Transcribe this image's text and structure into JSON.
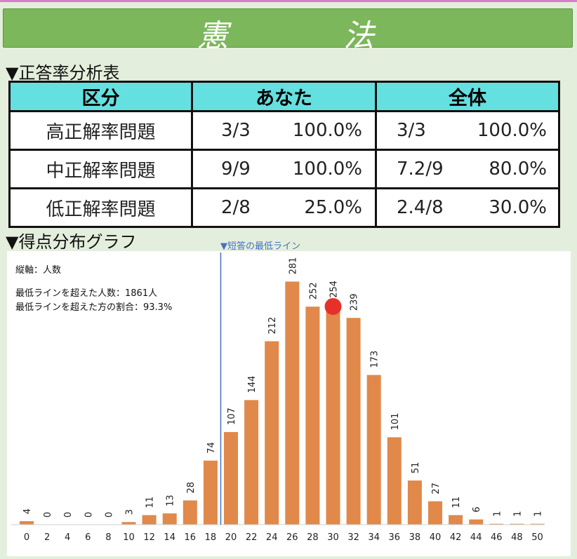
{
  "header": {
    "title_char_1": "憲",
    "title_char_2": "法"
  },
  "analysis": {
    "heading": "▼正答率分析表",
    "columns": [
      "区分",
      "あなた",
      "全体"
    ],
    "rows": [
      {
        "label": "高正解率問題",
        "you_count": "3/3",
        "you_pct": "100.0%",
        "all_count": "3/3",
        "all_pct": "100.0%"
      },
      {
        "label": "中正解率問題",
        "you_count": "9/9",
        "you_pct": "100.0%",
        "all_count": "7.2/9",
        "all_pct": "80.0%"
      },
      {
        "label": "低正解率問題",
        "you_count": "2/8",
        "you_pct": "25.0%",
        "all_count": "2.4/8",
        "all_pct": "30.0%"
      }
    ]
  },
  "distribution": {
    "heading": "▼得点分布グラフ",
    "min_line_label": "▼短答の最低ライン",
    "y_axis_note": "縦軸：人数",
    "above_count_note": "最低ラインを超えた人数：1861人",
    "above_ratio_note": "最低ラインを超えた方の割合：93.3%"
  },
  "chart_data": {
    "type": "bar",
    "categories": [
      "0",
      "2",
      "4",
      "6",
      "8",
      "10",
      "12",
      "14",
      "16",
      "18",
      "20",
      "22",
      "24",
      "26",
      "28",
      "30",
      "32",
      "34",
      "36",
      "38",
      "40",
      "42",
      "44",
      "46",
      "48",
      "50"
    ],
    "values": [
      4,
      0,
      0,
      0,
      0,
      3,
      11,
      13,
      28,
      74,
      107,
      144,
      212,
      281,
      252,
      254,
      239,
      173,
      101,
      51,
      27,
      11,
      6,
      1,
      1,
      1
    ],
    "ylim": [
      0,
      300
    ],
    "bar_color": "#e0894a",
    "minimum_line_x": 20,
    "marker": {
      "x": "30",
      "color": "#e8302a"
    },
    "grid": false
  }
}
